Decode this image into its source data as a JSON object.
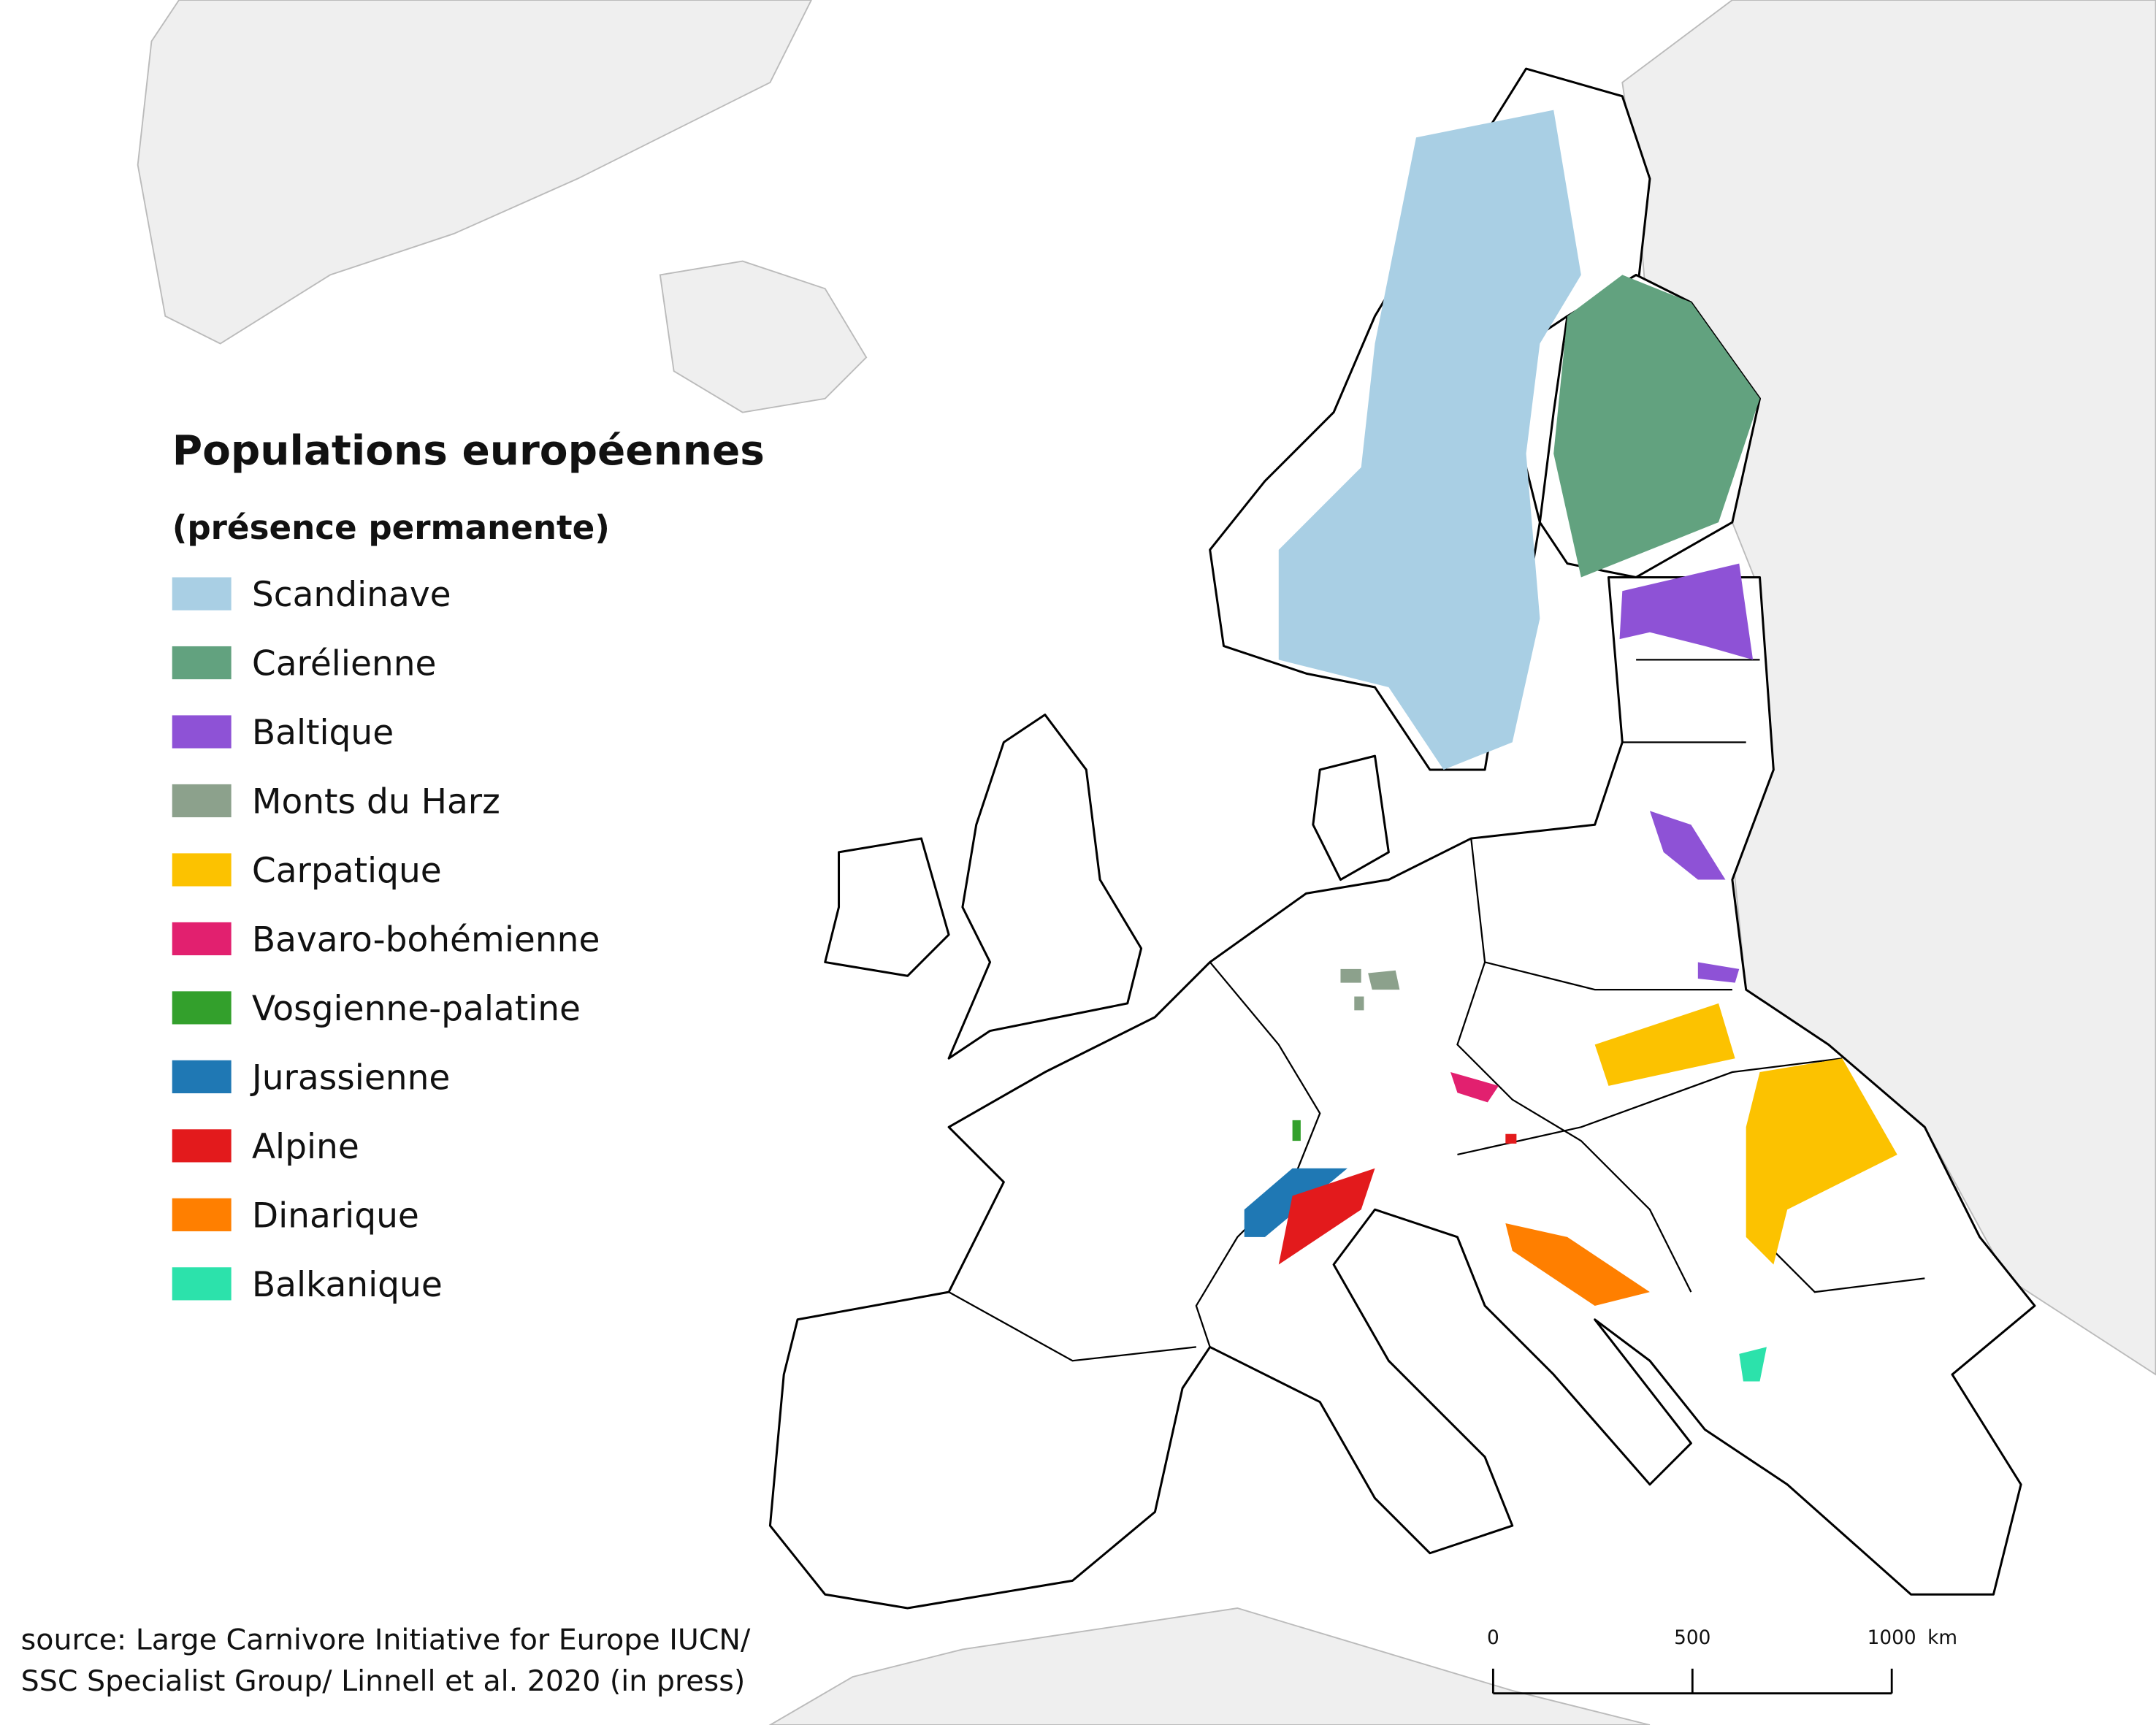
{
  "legend": {
    "title": "Populations européennes",
    "subtitle": "(présence permanente)",
    "items": [
      {
        "label": "Scandinave",
        "color": "#a9cfe4"
      },
      {
        "label": "Carélienne",
        "color": "#62a27f"
      },
      {
        "label": "Baltique",
        "color": "#8e52d6"
      },
      {
        "label": "Monts du Harz",
        "color": "#8ca18c"
      },
      {
        "label": "Carpatique",
        "color": "#fcc200"
      },
      {
        "label": "Bavaro-bohémienne",
        "color": "#e2206f"
      },
      {
        "label": "Vosgienne-palatine",
        "color": "#33a02c"
      },
      {
        "label": "Jurassienne",
        "color": "#1f78b4"
      },
      {
        "label": "Alpine",
        "color": "#e31a1c"
      },
      {
        "label": "Dinarique",
        "color": "#ff7f00"
      },
      {
        "label": "Balkanique",
        "color": "#2ce2ab"
      }
    ]
  },
  "source": [
    "source: Large Carnivore Initiative for Europe IUCN/",
    "SSC Specialist Group/ Linnell et al. 2020 (in press)"
  ],
  "scale_bar": {
    "ticks": [
      0,
      500,
      1000
    ],
    "unit": "km"
  }
}
